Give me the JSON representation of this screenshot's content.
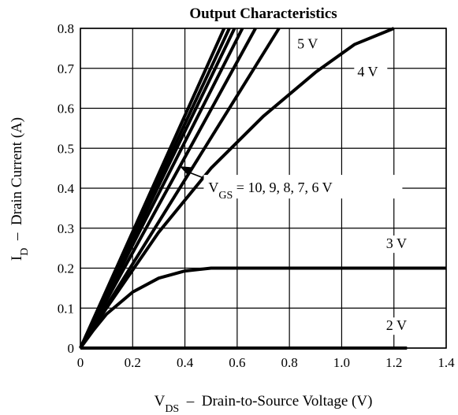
{
  "chart_data": {
    "type": "line",
    "title": "Output Characteristics",
    "xlabel": {
      "main": "V",
      "sub": "DS",
      "rest": "  –  Drain-to-Source Voltage (V)"
    },
    "ylabel": {
      "main": "I",
      "sub": "D",
      "rest": "  –  Drain Current (A)"
    },
    "xlim": [
      0,
      1.4
    ],
    "ylim": [
      0,
      0.8
    ],
    "x_ticks": [
      "0",
      "0.2",
      "0.4",
      "0.6",
      "0.8",
      "1.0",
      "1.2",
      "1.4"
    ],
    "y_ticks": [
      "0",
      "0.1",
      "0.2",
      "0.3",
      "0.4",
      "0.5",
      "0.6",
      "0.7",
      "0.8"
    ],
    "grid": true,
    "series": [
      {
        "name": "10 V",
        "x": [
          0,
          0.55
        ],
        "y": [
          0,
          0.8
        ]
      },
      {
        "name": "9 V",
        "x": [
          0,
          0.57
        ],
        "y": [
          0,
          0.8
        ]
      },
      {
        "name": "8 V",
        "x": [
          0,
          0.59
        ],
        "y": [
          0,
          0.8
        ]
      },
      {
        "name": "7 V",
        "x": [
          0,
          0.62
        ],
        "y": [
          0,
          0.8
        ]
      },
      {
        "name": "6 V",
        "x": [
          0,
          0.67
        ],
        "y": [
          0,
          0.8
        ]
      },
      {
        "name": "5 V",
        "x": [
          0,
          0.76
        ],
        "y": [
          0,
          0.8
        ]
      },
      {
        "name": "4 V",
        "x": [
          0,
          0.1,
          0.3,
          0.5,
          0.7,
          0.9,
          1.05,
          1.2
        ],
        "y": [
          0,
          0.1,
          0.29,
          0.45,
          0.58,
          0.69,
          0.76,
          0.8
        ]
      },
      {
        "name": "3 V",
        "x": [
          0,
          0.05,
          0.1,
          0.2,
          0.3,
          0.4,
          0.5,
          0.55,
          1.4
        ],
        "y": [
          0,
          0.045,
          0.085,
          0.14,
          0.175,
          0.193,
          0.2,
          0.2,
          0.2
        ]
      },
      {
        "name": "2 V",
        "x": [
          0,
          1.25
        ],
        "y": [
          0,
          0
        ]
      }
    ],
    "annotations": [
      {
        "label": "5 V",
        "x": 0.83,
        "y": 0.75
      },
      {
        "label": "4 V",
        "x": 1.06,
        "y": 0.68
      },
      {
        "label": "3 V",
        "x": 1.17,
        "y": 0.25
      },
      {
        "label": "2 V",
        "x": 1.17,
        "y": 0.045
      },
      {
        "label_main": "V",
        "label_sub": "GS",
        "label_rest": " = 10, 9, 8, 7, 6 V",
        "x": 0.49,
        "y": 0.39,
        "arrow_to": [
          0.38,
          0.455
        ]
      }
    ]
  }
}
